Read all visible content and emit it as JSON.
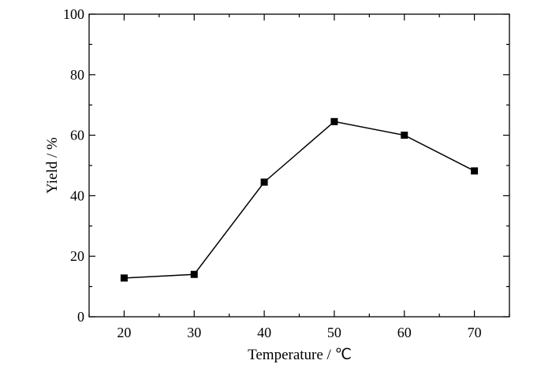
{
  "chart_data": {
    "type": "line",
    "xlabel": "Temperature / ℃",
    "ylabel": "Yield / %",
    "xlim": [
      15,
      75
    ],
    "ylim": [
      0,
      100
    ],
    "x_ticks": [
      20,
      30,
      40,
      50,
      60,
      70
    ],
    "y_ticks": [
      0,
      20,
      40,
      60,
      80,
      100
    ],
    "grid": false,
    "series": [
      {
        "x": [
          20,
          30,
          40,
          50,
          60,
          70
        ],
        "y": [
          12.8,
          14.0,
          44.5,
          64.5,
          60.0,
          48.2
        ],
        "marker": "square",
        "color": "#000000"
      }
    ]
  }
}
